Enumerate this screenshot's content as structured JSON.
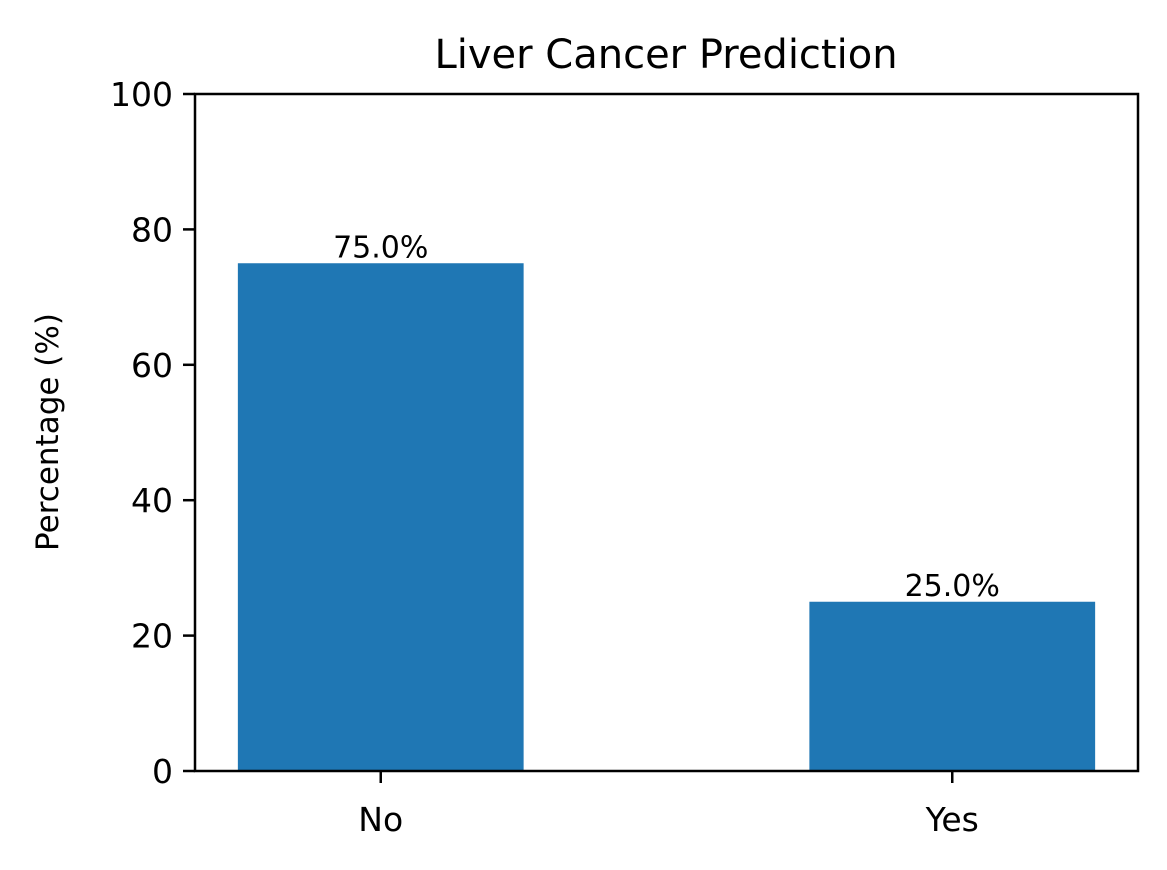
{
  "chart_data": {
    "type": "bar",
    "title": "Liver Cancer Prediction",
    "xlabel": "",
    "ylabel": "Percentage (%)",
    "categories": [
      "No",
      "Yes"
    ],
    "values": [
      75.0,
      25.0
    ],
    "data_labels": [
      "75.0%",
      "25.0%"
    ],
    "ylim": [
      0,
      100
    ],
    "yticks": [
      0,
      20,
      40,
      60,
      80,
      100
    ],
    "ytick_labels": [
      "0",
      "20",
      "40",
      "60",
      "80",
      "100"
    ],
    "grid": false,
    "legend": "none",
    "bar_color": "#1f77b4"
  }
}
